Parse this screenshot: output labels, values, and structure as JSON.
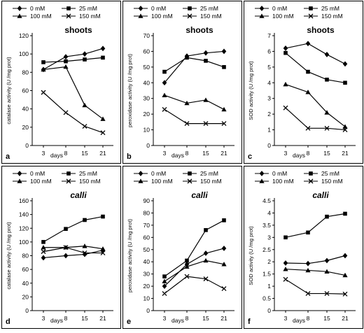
{
  "legend_labels": [
    "0 mM",
    "25 mM",
    "100 mM",
    "150 mM"
  ],
  "x_axis_label": "days",
  "chart_data": [
    {
      "type": "line",
      "panel_label": "a",
      "title": "shoots",
      "title_italic": false,
      "ylabel": "catalase activity (U /mg prot)",
      "xlabel": "days",
      "x": [
        3,
        8,
        15,
        21
      ],
      "ylim": [
        0,
        120
      ],
      "yticks": [
        0,
        20,
        40,
        60,
        80,
        100,
        120
      ],
      "series": [
        {
          "name": "0 mM",
          "marker": "diamond",
          "values": [
            83,
            97,
            100,
            106
          ]
        },
        {
          "name": "25 mM",
          "marker": "square",
          "values": [
            91,
            92,
            94,
            96
          ]
        },
        {
          "name": "100 mM",
          "marker": "triangle",
          "values": [
            83,
            86,
            44,
            29
          ]
        },
        {
          "name": "150 mM",
          "marker": "x",
          "values": [
            58,
            36,
            21,
            14
          ]
        }
      ]
    },
    {
      "type": "line",
      "panel_label": "b",
      "title": "shoots",
      "title_italic": false,
      "ylabel": "peroxidase activity (U /mg prot)",
      "xlabel": "days",
      "x": [
        3,
        8,
        15,
        21
      ],
      "ylim": [
        0,
        70
      ],
      "yticks": [
        0,
        10,
        20,
        30,
        40,
        50,
        60,
        70
      ],
      "series": [
        {
          "name": "0 mM",
          "marker": "diamond",
          "values": [
            40,
            57,
            59,
            60
          ]
        },
        {
          "name": "25 mM",
          "marker": "square",
          "values": [
            47,
            56,
            54,
            50
          ]
        },
        {
          "name": "100 mM",
          "marker": "triangle",
          "values": [
            32,
            27,
            29,
            23
          ]
        },
        {
          "name": "150 mM",
          "marker": "x",
          "values": [
            23,
            14,
            14,
            14
          ]
        }
      ]
    },
    {
      "type": "line",
      "panel_label": "c",
      "title": "shoots",
      "title_italic": false,
      "ylabel": "SOD activity (U /mg prot)",
      "xlabel": "days",
      "x": [
        3,
        8,
        15,
        21
      ],
      "ylim": [
        0,
        7
      ],
      "yticks": [
        0,
        1,
        2,
        3,
        4,
        5,
        6,
        7
      ],
      "series": [
        {
          "name": "0 mM",
          "marker": "diamond",
          "values": [
            6.2,
            6.5,
            5.8,
            5.2
          ]
        },
        {
          "name": "25 mM",
          "marker": "square",
          "values": [
            5.9,
            4.7,
            4.2,
            4.0
          ]
        },
        {
          "name": "100 mM",
          "marker": "triangle",
          "values": [
            3.9,
            3.4,
            2.1,
            1.2
          ]
        },
        {
          "name": "150 mM",
          "marker": "x",
          "values": [
            2.4,
            1.1,
            1.1,
            1.0
          ]
        }
      ]
    },
    {
      "type": "line",
      "panel_label": "d",
      "title": "calli",
      "title_italic": true,
      "ylabel": "catalase activity (U /mg prot)",
      "xlabel": "days",
      "x": [
        3,
        8,
        15,
        21
      ],
      "ylim": [
        0,
        160
      ],
      "yticks": [
        0,
        20,
        40,
        60,
        80,
        100,
        120,
        140,
        160
      ],
      "series": [
        {
          "name": "0 mM",
          "marker": "diamond",
          "values": [
            77,
            80,
            82,
            88
          ]
        },
        {
          "name": "25 mM",
          "marker": "square",
          "values": [
            100,
            119,
            132,
            137
          ]
        },
        {
          "name": "100 mM",
          "marker": "triangle",
          "values": [
            92,
            92,
            94,
            90
          ]
        },
        {
          "name": "150 mM",
          "marker": "x",
          "values": [
            86,
            92,
            84,
            84
          ]
        }
      ]
    },
    {
      "type": "line",
      "panel_label": "e",
      "title": "calli",
      "title_italic": true,
      "ylabel": "peroxidase activity (U /mg prot)",
      "xlabel": "days",
      "x": [
        3,
        8,
        15,
        21
      ],
      "ylim": [
        0,
        90
      ],
      "yticks": [
        0,
        10,
        20,
        30,
        40,
        50,
        60,
        70,
        80,
        90
      ],
      "series": [
        {
          "name": "0 mM",
          "marker": "diamond",
          "values": [
            20,
            38,
            47,
            51
          ]
        },
        {
          "name": "25 mM",
          "marker": "square",
          "values": [
            28,
            41,
            66,
            74
          ]
        },
        {
          "name": "100 mM",
          "marker": "triangle",
          "values": [
            24,
            36,
            41,
            38
          ]
        },
        {
          "name": "150 mM",
          "marker": "x",
          "values": [
            14,
            28,
            26,
            18
          ]
        }
      ]
    },
    {
      "type": "line",
      "panel_label": "f",
      "title": "calli",
      "title_italic": true,
      "ylabel": "SOD activity (U /mg prot)",
      "xlabel": "days",
      "x": [
        3,
        8,
        15,
        21
      ],
      "ylim": [
        0,
        4.5
      ],
      "yticks": [
        0,
        0.5,
        1,
        1.5,
        2,
        2.5,
        3,
        3.5,
        4,
        4.5
      ],
      "series": [
        {
          "name": "0 mM",
          "marker": "diamond",
          "values": [
            1.95,
            1.93,
            2.05,
            2.25
          ]
        },
        {
          "name": "25 mM",
          "marker": "square",
          "values": [
            3.0,
            3.2,
            3.85,
            3.97
          ]
        },
        {
          "name": "100 mM",
          "marker": "triangle",
          "values": [
            1.7,
            1.65,
            1.6,
            1.45
          ]
        },
        {
          "name": "150 mM",
          "marker": "x",
          "values": [
            1.28,
            0.7,
            0.7,
            0.68
          ]
        }
      ]
    }
  ]
}
